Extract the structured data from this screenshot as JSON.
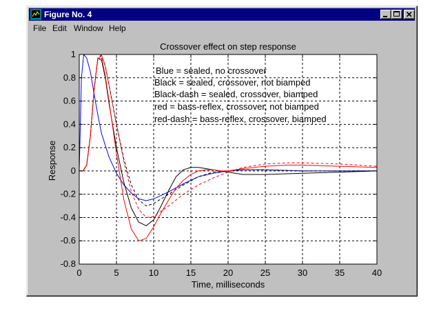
{
  "window": {
    "title": "Figure No. 4",
    "controls": {
      "minimize_icon": "minimize-icon",
      "maximize_icon": "maximize-icon",
      "close_icon": "close-icon"
    }
  },
  "menu": {
    "file": "File",
    "edit": "Edit",
    "window": "Window",
    "help": "Help"
  },
  "colors": {
    "titlebar": "#000080",
    "figure_bg": "#c0c0c0",
    "blue": "#0000ff",
    "black": "#000000",
    "red": "#ff0000"
  },
  "chart_data": {
    "type": "line",
    "title": "Crossover effect on step response",
    "xlabel": "Time, milliseconds",
    "ylabel": "Response",
    "xlim": [
      0,
      40
    ],
    "ylim": [
      -0.8,
      1
    ],
    "xticks": [
      0,
      5,
      10,
      15,
      20,
      25,
      30,
      35,
      40
    ],
    "yticks": [
      1,
      0.8,
      0.6,
      0.4,
      0.2,
      0,
      -0.2,
      -0.4,
      -0.6,
      -0.8
    ],
    "grid": true,
    "annotations": [
      "Blue = sealed, no crossover",
      "Black = sealed, crossover, not biamped",
      "Black-dash = sealed, crossover, biamped",
      "red = bass-reflex, crossover, not biamped",
      "red-dash = bass-reflex, crossover, biamped"
    ],
    "series": [
      {
        "color": "#0000ff",
        "dashed": false,
        "x": [
          0,
          0.3,
          0.6,
          1,
          1.5,
          2,
          2.5,
          3,
          4,
          5,
          6,
          7,
          8,
          9,
          10,
          12,
          14,
          16,
          18,
          20,
          22,
          25,
          30,
          35,
          40
        ],
        "y": [
          0,
          0.8,
          1.0,
          0.97,
          0.85,
          0.66,
          0.48,
          0.32,
          0.12,
          -0.02,
          -0.12,
          -0.19,
          -0.24,
          -0.255,
          -0.24,
          -0.18,
          -0.11,
          -0.05,
          -0.02,
          0,
          0.01,
          0.01,
          0,
          0,
          0
        ]
      },
      {
        "color": "#000000",
        "dashed": false,
        "x": [
          0,
          0.5,
          1,
          1.5,
          2,
          2.5,
          3,
          3.5,
          4,
          5,
          6,
          7,
          8,
          9,
          10,
          11,
          12,
          13,
          14,
          15,
          16,
          17,
          18,
          19,
          20,
          22,
          25,
          30,
          35,
          40
        ],
        "y": [
          0,
          0,
          0.05,
          0.3,
          0.7,
          0.97,
          0.95,
          0.8,
          0.58,
          0.2,
          -0.1,
          -0.32,
          -0.44,
          -0.47,
          -0.42,
          -0.3,
          -0.17,
          -0.05,
          0.01,
          0.03,
          0.03,
          0.02,
          0.01,
          0,
          -0.01,
          -0.03,
          -0.03,
          -0.02,
          -0.01,
          0
        ]
      },
      {
        "color": "#000000",
        "dashed": true,
        "x": [
          0,
          0.5,
          1,
          1.5,
          2,
          2.5,
          3,
          3.5,
          4,
          5,
          6,
          7,
          8,
          9,
          10,
          12,
          14,
          16,
          18,
          20,
          22,
          25,
          30,
          35,
          40
        ],
        "y": [
          0,
          0,
          0.05,
          0.3,
          0.7,
          0.97,
          0.99,
          0.9,
          0.74,
          0.4,
          0.1,
          -0.12,
          -0.25,
          -0.3,
          -0.28,
          -0.2,
          -0.12,
          -0.05,
          -0.01,
          0,
          0.01,
          0.01,
          0,
          0,
          0
        ]
      },
      {
        "color": "#ff0000",
        "dashed": false,
        "x": [
          0,
          0.5,
          1,
          1.5,
          2,
          2.5,
          3,
          3.5,
          4,
          5,
          6,
          7,
          8,
          9,
          10,
          11,
          12,
          13,
          14,
          15,
          16,
          17,
          18,
          19,
          20,
          22,
          25,
          28,
          30,
          35,
          40
        ],
        "y": [
          0,
          0,
          0.05,
          0.3,
          0.7,
          0.97,
          0.97,
          0.82,
          0.6,
          0.15,
          -0.25,
          -0.5,
          -0.6,
          -0.58,
          -0.48,
          -0.36,
          -0.25,
          -0.15,
          -0.08,
          -0.03,
          0,
          0.01,
          0.01,
          0,
          0,
          0.02,
          0.04,
          0.05,
          0.05,
          0.04,
          0.03
        ]
      },
      {
        "color": "#ff0000",
        "dashed": true,
        "x": [
          0,
          0.5,
          1,
          1.5,
          2,
          2.5,
          3,
          3.5,
          4,
          5,
          6,
          7,
          8,
          9,
          10,
          12,
          14,
          16,
          18,
          20,
          22,
          25,
          28,
          30,
          35,
          40
        ],
        "y": [
          0,
          0,
          0.05,
          0.3,
          0.7,
          0.97,
          1.0,
          0.9,
          0.74,
          0.4,
          0.08,
          -0.18,
          -0.33,
          -0.4,
          -0.39,
          -0.3,
          -0.2,
          -0.12,
          -0.06,
          -0.01,
          0.03,
          0.06,
          0.07,
          0.07,
          0.06,
          0.04
        ]
      }
    ]
  }
}
